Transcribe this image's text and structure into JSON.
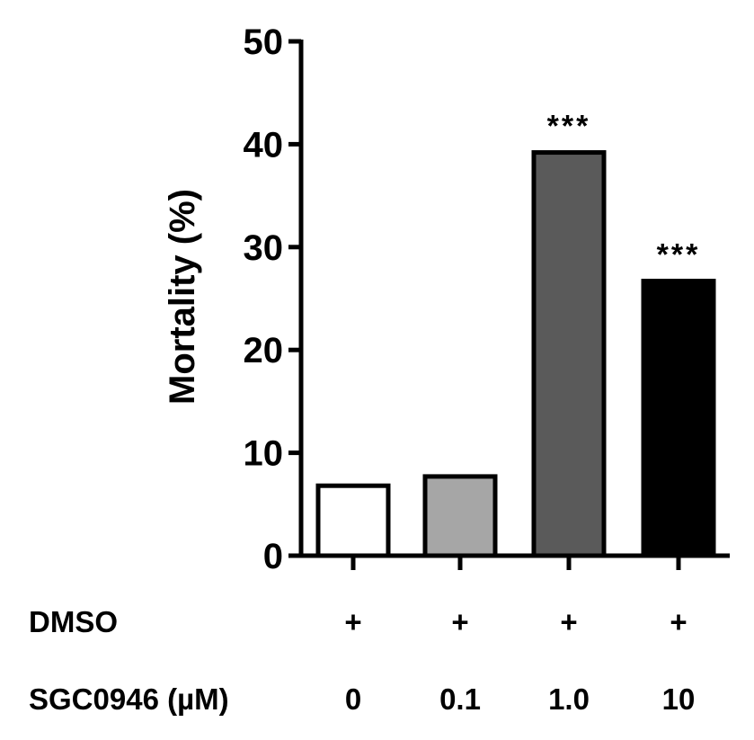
{
  "chart_data": {
    "type": "bar",
    "title": "",
    "xlabel": "",
    "ylabel": "Mortality (%)",
    "ylim": [
      0,
      50
    ],
    "yticks": [
      "0",
      "10",
      "20",
      "30",
      "40",
      "50"
    ],
    "categories": [
      "0",
      "0.1",
      "1.0",
      "10"
    ],
    "values": [
      6.8,
      7.7,
      39.2,
      26.7
    ],
    "colors": [
      "#ffffff",
      "#a6a6a6",
      "#5a5a5a",
      "#000000"
    ],
    "significance": [
      "",
      "",
      "***",
      "***"
    ],
    "rows": [
      {
        "label": "DMSO",
        "cells": [
          "+",
          "+",
          "+",
          "+"
        ]
      },
      {
        "label": "SGC0946 (µM)",
        "cells": [
          "0",
          "0.1",
          "1.0",
          "10"
        ]
      }
    ]
  }
}
